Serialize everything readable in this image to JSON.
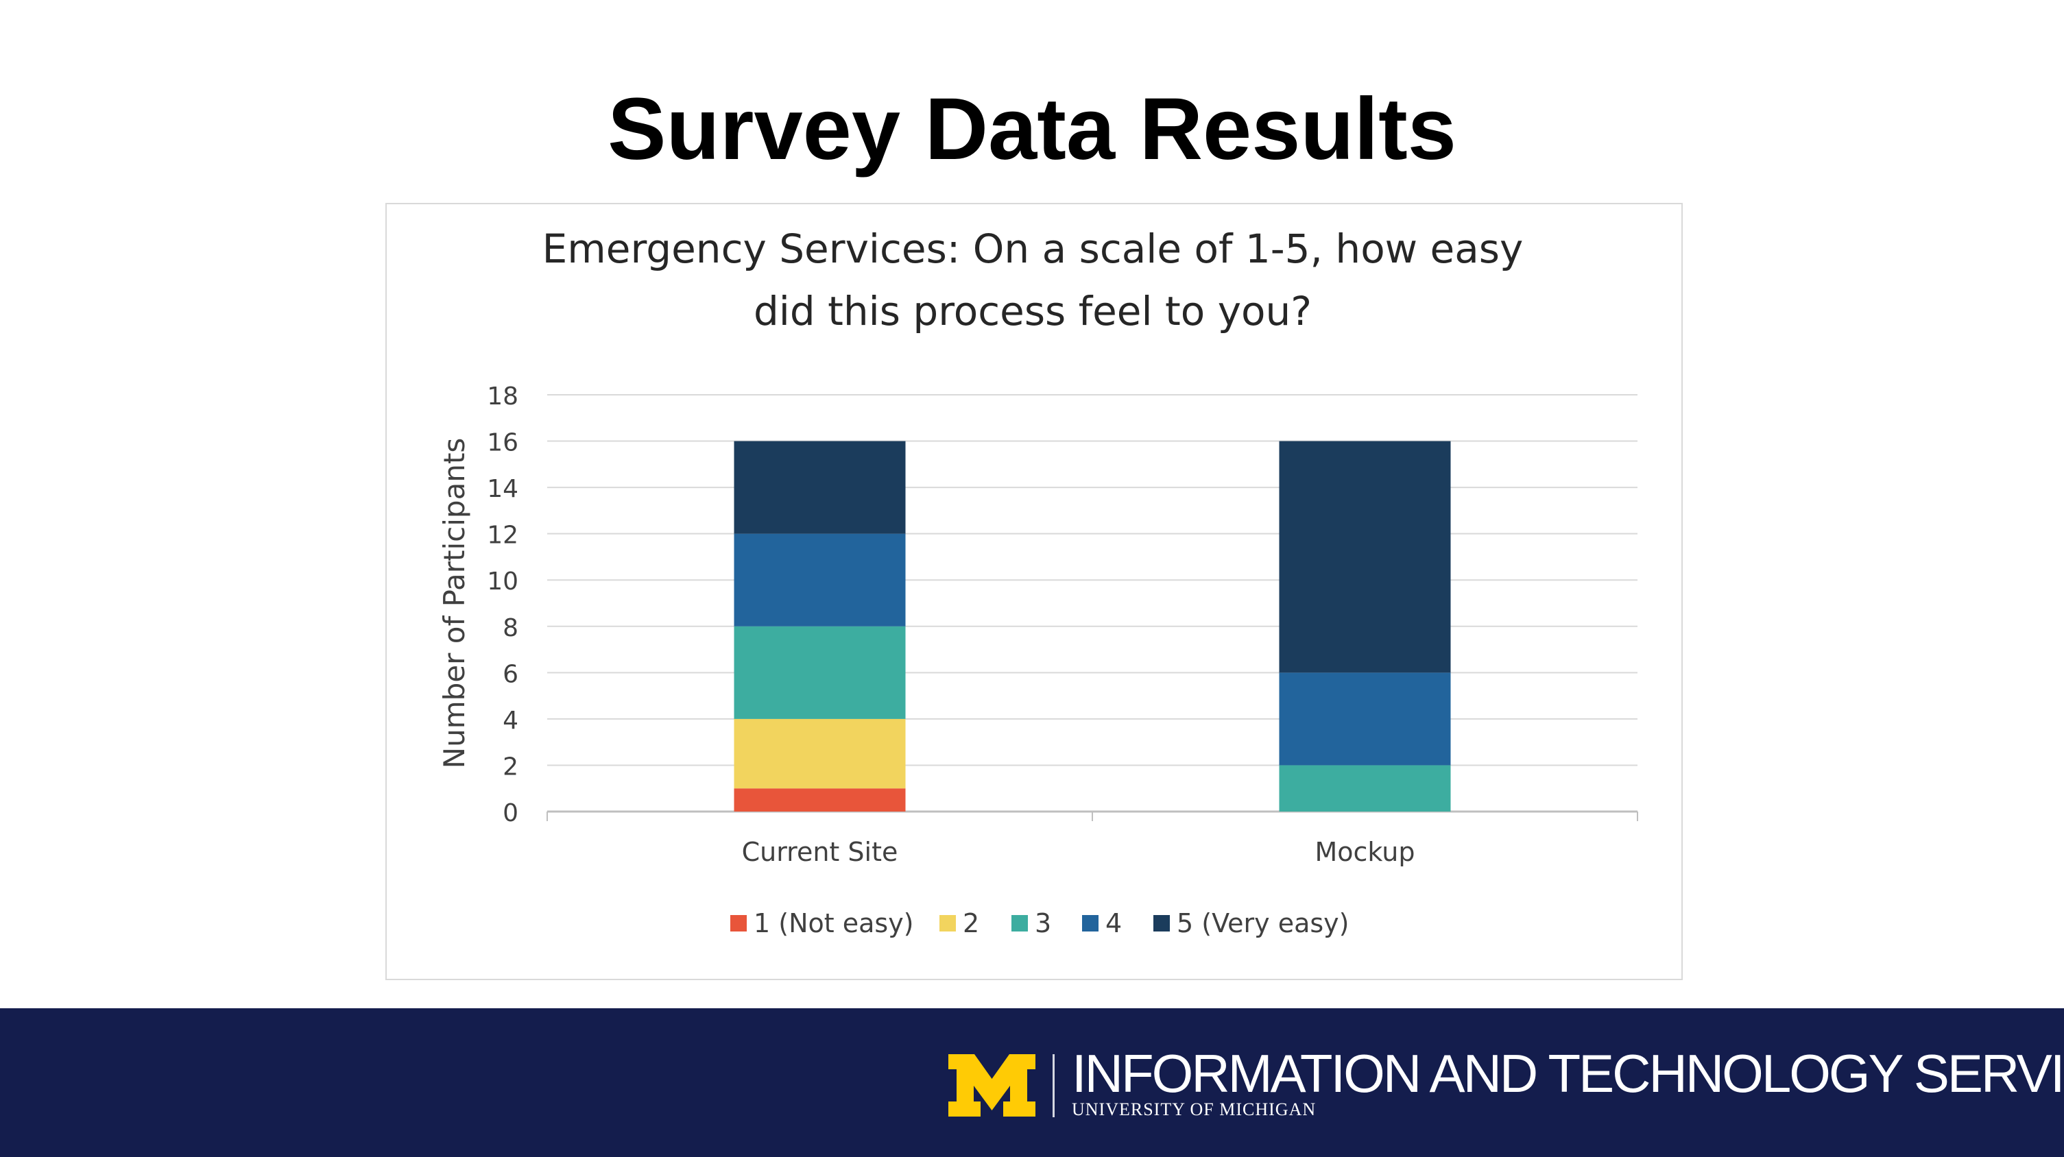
{
  "slide": {
    "title": "Survey Data Results"
  },
  "footer": {
    "org_name": "INFORMATION AND TECHNOLOGY SERVICES",
    "university": "UNIVERSITY OF MICHIGAN",
    "logo_icon": "block-m-logo-icon",
    "background_color": "#141d4d",
    "logo_color": "#ffcb05"
  },
  "chart_data": {
    "type": "bar",
    "stacked": true,
    "title_lines": [
      "Emergency Services: On a scale of 1-5, how easy",
      "did this process feel to you?"
    ],
    "ylabel": "Number of Participants",
    "xlabel": "",
    "ylim": [
      0,
      18
    ],
    "yticks": [
      0,
      2,
      4,
      6,
      8,
      10,
      12,
      14,
      16,
      18
    ],
    "grid": true,
    "legend_position": "bottom",
    "categories": [
      "Current Site",
      "Mockup"
    ],
    "series": [
      {
        "name": "1 (Not easy)",
        "color": "#e8553a",
        "values": [
          1,
          0
        ]
      },
      {
        "name": "2",
        "color": "#f2d45e",
        "values": [
          3,
          0
        ]
      },
      {
        "name": "3",
        "color": "#3dada0",
        "values": [
          4,
          2
        ]
      },
      {
        "name": "4",
        "color": "#22649c",
        "values": [
          4,
          4
        ]
      },
      {
        "name": "5 (Very easy)",
        "color": "#1b3c5c",
        "values": [
          4,
          10
        ]
      }
    ]
  }
}
